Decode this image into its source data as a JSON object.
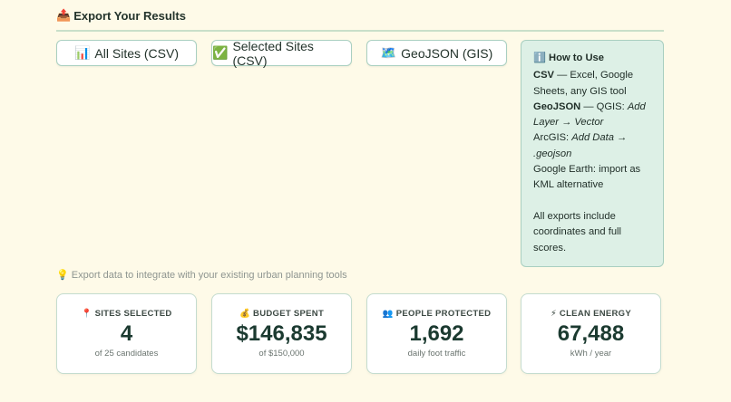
{
  "section": {
    "icon": "📤",
    "title": "Export Your Results"
  },
  "export_buttons": [
    {
      "icon": "📊",
      "label": "All Sites (CSV)"
    },
    {
      "icon": "✅",
      "label": "Selected Sites (CSV)"
    },
    {
      "icon": "🗺️",
      "label": "GeoJSON (GIS)"
    }
  ],
  "how_to_use": {
    "icon": "ℹ️",
    "title": "How to Use",
    "csv_label": "CSV",
    "csv_text": " — Excel, Google Sheets, any GIS tool",
    "geojson_label": "GeoJSON",
    "geojson_text": " — QGIS: ",
    "geojson_path": "Add Layer → Vector",
    "arcgis_text": "ArcGIS: ",
    "arcgis_path": "Add Data → .geojson",
    "google_earth": "Google Earth: import as KML alternative",
    "footer": "All exports include coordinates and full scores."
  },
  "hint": {
    "icon": "💡",
    "text": "Export data to integrate with your existing urban planning tools"
  },
  "stats": [
    {
      "icon": "📍",
      "label": "SITES SELECTED",
      "value": "4",
      "sub": "of 25 candidates"
    },
    {
      "icon": "💰",
      "label": "BUDGET SPENT",
      "value": "$146,835",
      "sub": "of $150,000"
    },
    {
      "icon": "👥",
      "label": "PEOPLE PROTECTED",
      "value": "1,692",
      "sub": "daily foot traffic"
    },
    {
      "icon": "⚡",
      "label": "CLEAN ENERGY",
      "value": "67,488",
      "sub": "kWh / year"
    }
  ]
}
